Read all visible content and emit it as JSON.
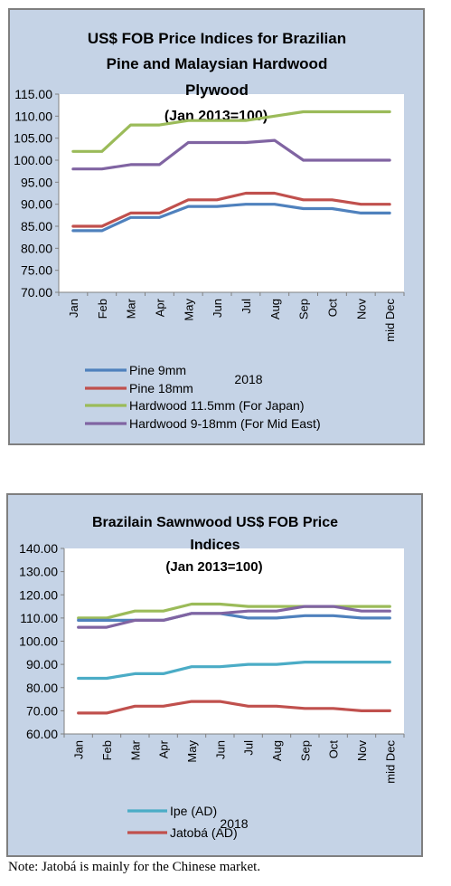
{
  "note": "Note: Jatobá is mainly for the Chinese market.",
  "chart_data": [
    {
      "type": "line",
      "title_lines": [
        "US$ FOB Price Indices for Brazilian",
        "Pine and Malaysian Hardwood"
      ],
      "title_extra": "Plywood",
      "subtitle": "(Jan 2013=100)",
      "year_label": "2018",
      "categories": [
        "Jan",
        "Feb",
        "Mar",
        "Apr",
        "May",
        "Jun",
        "Jul",
        "Aug",
        "Sep",
        "Oct",
        "Nov",
        "mid Dec"
      ],
      "ylim": [
        70,
        115
      ],
      "yticks": [
        "70.00",
        "75.00",
        "80.00",
        "85.00",
        "90.00",
        "95.00",
        "100.00",
        "105.00",
        "110.00",
        "115.00"
      ],
      "grid": false,
      "legend_position": "bottom",
      "series": [
        {
          "name": "Pine 9mm",
          "color": "#4f81bd",
          "values": [
            84,
            84,
            87,
            87,
            89.5,
            89.5,
            90,
            90,
            89,
            89,
            88,
            88
          ]
        },
        {
          "name": "Pine 18mm",
          "color": "#c0504d",
          "values": [
            85,
            85,
            88,
            88,
            91,
            91,
            92.5,
            92.5,
            91,
            91,
            90,
            90
          ]
        },
        {
          "name": "Hardwood 11.5mm (For Japan)",
          "color": "#9bbb59",
          "values": [
            102,
            102,
            108,
            108,
            109,
            109,
            109,
            110,
            111,
            111,
            111,
            111
          ]
        },
        {
          "name": "Hardwood 9-18mm (For Mid East)",
          "color": "#8064a2",
          "values": [
            98,
            98,
            99,
            99,
            104,
            104,
            104,
            104.5,
            100,
            100,
            100,
            100
          ]
        }
      ]
    },
    {
      "type": "line",
      "title_lines": [
        "Brazilain Sawnwood US$ FOB Price",
        "Indices"
      ],
      "subtitle": "(Jan 2013=100)",
      "year_label": "2018",
      "categories": [
        "Jan",
        "Feb",
        "Mar",
        "Apr",
        "May",
        "Jun",
        "Jul",
        "Aug",
        "Sep",
        "Oct",
        "Nov",
        "mid Dec"
      ],
      "ylim": [
        60,
        140
      ],
      "yticks": [
        "60.00",
        "70.00",
        "80.00",
        "90.00",
        "100.00",
        "110.00",
        "120.00",
        "130.00",
        "140.00"
      ],
      "grid": false,
      "legend_position": "bottom",
      "series": [
        {
          "name": "Ipe (AD)",
          "color": "#4bacc6",
          "in_legend": true,
          "values": [
            84,
            84,
            86,
            86,
            89,
            89,
            90,
            90,
            91,
            91,
            91,
            91
          ]
        },
        {
          "name": "Jatobá (AD)",
          "color": "#c0504d",
          "in_legend": true,
          "values": [
            69,
            69,
            72,
            72,
            74,
            74,
            72,
            72,
            71,
            71,
            70,
            70
          ]
        },
        {
          "color": "#9bbb59",
          "in_legend": false,
          "values": [
            110,
            110,
            113,
            113,
            116,
            116,
            115,
            115,
            115,
            115,
            115,
            115
          ]
        },
        {
          "color": "#4f81bd",
          "in_legend": false,
          "values": [
            109,
            109,
            109,
            109,
            112,
            112,
            110,
            110,
            111,
            111,
            110,
            110
          ]
        },
        {
          "color": "#8064a2",
          "in_legend": false,
          "values": [
            106,
            106,
            109,
            109,
            112,
            112,
            113,
            113,
            115,
            115,
            113,
            113
          ]
        }
      ]
    }
  ]
}
